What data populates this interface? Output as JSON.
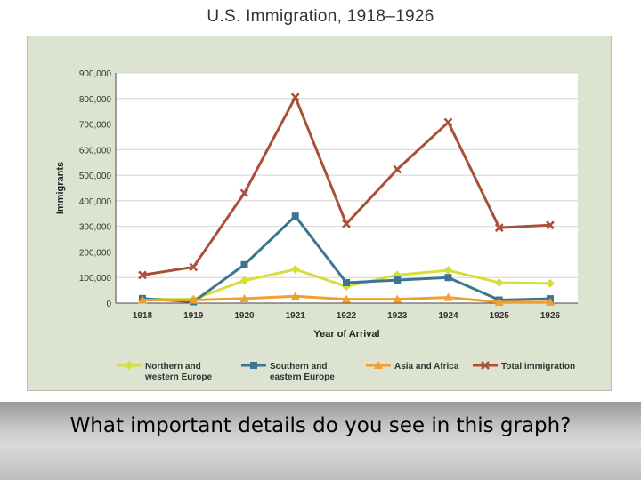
{
  "slide": {
    "title": "U.S. Immigration, 1918–1926",
    "caption": "What important details do you see in this graph?"
  },
  "chart_data": {
    "type": "line",
    "title": "U.S. Immigration, 1918–1926",
    "xlabel": "Year of Arrival",
    "ylabel": "Immigrants",
    "categories": [
      "1918",
      "1919",
      "1920",
      "1921",
      "1922",
      "1923",
      "1924",
      "1925",
      "1926"
    ],
    "ylim": [
      0,
      900000
    ],
    "yticks": [
      0,
      100000,
      200000,
      300000,
      400000,
      500000,
      600000,
      700000,
      800000,
      900000
    ],
    "ytick_labels": [
      "0",
      "100,000",
      "200,000",
      "300,000",
      "400,000",
      "500,000",
      "600,000",
      "700,000",
      "800,000",
      "900,000"
    ],
    "grid": "horizontal",
    "legend_position": "bottom",
    "series": [
      {
        "name": "Northern and western Europe",
        "legend_lines": [
          "Northern and",
          "western Europe"
        ],
        "color": "#d6de3e",
        "marker": "diamond",
        "values": [
          15000,
          15000,
          88000,
          132000,
          65000,
          110000,
          128000,
          80000,
          77000
        ]
      },
      {
        "name": "Southern and eastern Europe",
        "legend_lines": [
          "Southern and",
          "eastern Europe"
        ],
        "color": "#3b7590",
        "marker": "square",
        "values": [
          18000,
          5000,
          150000,
          340000,
          80000,
          90000,
          100000,
          12000,
          17000
        ]
      },
      {
        "name": "Asia and Africa",
        "legend_lines": [
          "Asia and Africa"
        ],
        "color": "#f0a030",
        "marker": "triangle",
        "values": [
          12000,
          12000,
          18000,
          27000,
          15000,
          15000,
          22000,
          4000,
          4000
        ]
      },
      {
        "name": "Total immigration",
        "legend_lines": [
          "Total immigration"
        ],
        "color": "#a9503a",
        "marker": "x",
        "values": [
          110000,
          141000,
          430000,
          805000,
          310000,
          523000,
          707000,
          295000,
          305000
        ]
      }
    ]
  }
}
